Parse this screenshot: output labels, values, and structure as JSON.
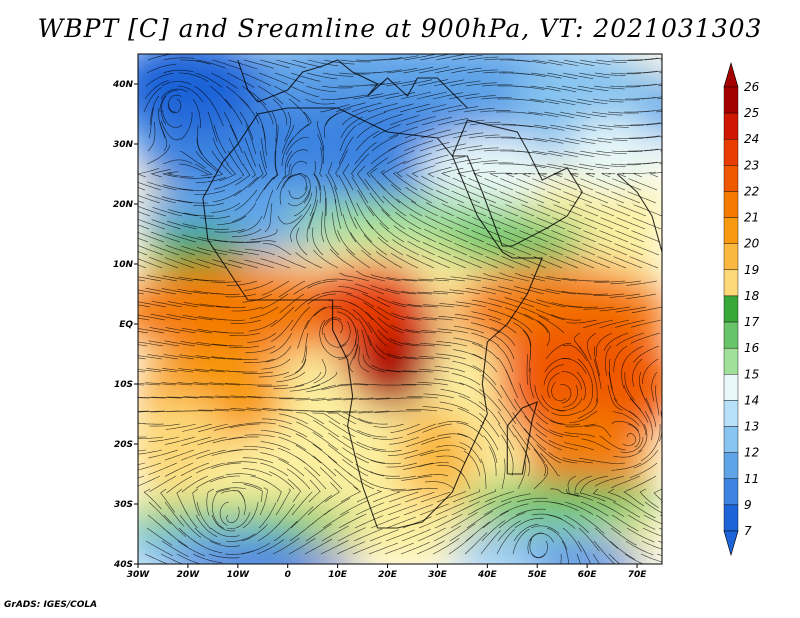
{
  "title": "WBPT [C] and Sreamline at 900hPa, VT: 2021031303",
  "credit": "GrADS: IGES/COLA",
  "map": {
    "variable": "WBPT",
    "units": "C",
    "level": "900hPa",
    "valid_time": "2021031303",
    "lon_range": [
      -30,
      75
    ],
    "lat_range": [
      -40,
      45
    ],
    "lon_ticks": [
      "30W",
      "20W",
      "10W",
      "0",
      "10E",
      "20E",
      "30E",
      "40E",
      "50E",
      "60E",
      "70E"
    ],
    "lat_ticks": [
      "40N",
      "30N",
      "20N",
      "10N",
      "EQ",
      "10S",
      "20S",
      "30S",
      "40S"
    ],
    "fields": {
      "cool_north": "Cool wet-bulb potential temperatures (7–15 C) over North Africa and the Mediterranean region",
      "hot_center": "Warmest values (24–26 C) over central Africa near the equator",
      "warm_ocean": "Warm values (21–24 C) over the Indian Ocean and tropical Atlantic",
      "cool_south": "Cool values (7–16 C) over the Southern Ocean south of 30S"
    }
  },
  "colorbar": {
    "labels": [
      "26",
      "25",
      "24",
      "23",
      "22",
      "21",
      "20",
      "19",
      "18",
      "17",
      "16",
      "15",
      "14",
      "13",
      "12",
      "11",
      "9",
      "7"
    ],
    "colors": [
      "#a50000",
      "#d01800",
      "#e83c00",
      "#f05800",
      "#f47a00",
      "#f89a10",
      "#fab840",
      "#fcd878",
      "#fcf0a0",
      "#38a838",
      "#68c468",
      "#a0e098",
      "#e8f8f8",
      "#b8e0f8",
      "#88c4f0",
      "#60a4e8",
      "#3c84e0",
      "#1c64d8"
    ]
  }
}
